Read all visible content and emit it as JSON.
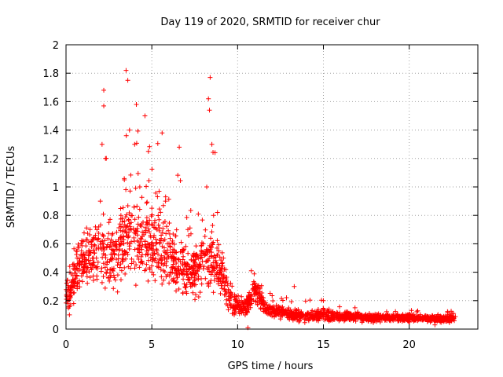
{
  "chart_data": {
    "type": "scatter",
    "title": "Day 119 of 2020, SRMTID for receiver chur",
    "xlabel": "GPS time / hours",
    "ylabel": "SRMTID / TECUs",
    "xlim": [
      0,
      24
    ],
    "ylim": [
      0,
      2
    ],
    "xticks": [
      0,
      5,
      10,
      15,
      20
    ],
    "yticks": [
      0,
      0.2,
      0.4,
      0.6,
      0.8,
      1,
      1.2,
      1.4,
      1.6,
      1.8,
      2
    ],
    "xtick_labels": [
      "0",
      "5",
      "10",
      "15",
      "20"
    ],
    "ytick_labels": [
      "0",
      "0.2",
      "0.4",
      "0.6",
      "0.8",
      "1",
      "1.2",
      "1.4",
      "1.6",
      "1.8",
      "2"
    ],
    "grid": true,
    "marker": "plus",
    "color": "#ff0000",
    "approx_point_count": 2200,
    "series": [
      {
        "name": "SRMTID",
        "points": [
          [
            0.1,
            0.18
          ],
          [
            0.2,
            0.1
          ],
          [
            0.3,
            0.3
          ],
          [
            0.5,
            0.42
          ],
          [
            0.6,
            0.55
          ],
          [
            0.8,
            0.48
          ],
          [
            1.0,
            0.62
          ],
          [
            1.2,
            0.4
          ],
          [
            1.4,
            0.7
          ],
          [
            1.6,
            0.5
          ],
          [
            1.8,
            0.35
          ],
          [
            2.0,
            0.9
          ],
          [
            2.1,
            1.3
          ],
          [
            2.2,
            1.68
          ],
          [
            2.2,
            1.57
          ],
          [
            2.3,
            1.2
          ],
          [
            2.5,
            0.75
          ],
          [
            2.8,
            0.55
          ],
          [
            3.0,
            0.45
          ],
          [
            3.2,
            0.8
          ],
          [
            3.4,
            1.05
          ],
          [
            3.5,
            1.82
          ],
          [
            3.6,
            1.75
          ],
          [
            3.7,
            1.4
          ],
          [
            4.0,
            1.3
          ],
          [
            4.1,
            1.58
          ],
          [
            4.3,
            1.0
          ],
          [
            4.6,
            1.5
          ],
          [
            4.8,
            1.25
          ],
          [
            5.0,
            0.85
          ],
          [
            5.3,
            0.7
          ],
          [
            5.6,
            1.38
          ],
          [
            5.8,
            0.9
          ],
          [
            6.0,
            0.6
          ],
          [
            6.3,
            0.5
          ],
          [
            6.6,
            1.28
          ],
          [
            6.8,
            0.45
          ],
          [
            7.1,
            0.7
          ],
          [
            7.4,
            0.4
          ],
          [
            7.7,
            0.35
          ],
          [
            8.0,
            0.6
          ],
          [
            8.2,
            1.0
          ],
          [
            8.3,
            1.62
          ],
          [
            8.4,
            1.77
          ],
          [
            8.5,
            1.3
          ],
          [
            8.6,
            0.8
          ],
          [
            8.9,
            0.55
          ],
          [
            9.2,
            0.38
          ],
          [
            9.5,
            0.2
          ],
          [
            9.8,
            0.1
          ],
          [
            10.0,
            0.15
          ],
          [
            10.6,
            0.01
          ],
          [
            10.8,
            0.41
          ],
          [
            11.0,
            0.3
          ],
          [
            11.5,
            0.22
          ],
          [
            12.0,
            0.15
          ],
          [
            12.5,
            0.13
          ],
          [
            13.0,
            0.1
          ],
          [
            13.3,
            0.3
          ],
          [
            13.6,
            0.06
          ],
          [
            14.0,
            0.1
          ],
          [
            14.5,
            0.08
          ],
          [
            15.0,
            0.2
          ],
          [
            15.5,
            0.12
          ],
          [
            16.0,
            0.08
          ],
          [
            16.5,
            0.07
          ],
          [
            17.0,
            0.12
          ],
          [
            17.5,
            0.09
          ],
          [
            18.0,
            0.06
          ],
          [
            18.5,
            0.1
          ],
          [
            19.0,
            0.08
          ],
          [
            19.5,
            0.07
          ],
          [
            20.0,
            0.1
          ],
          [
            20.5,
            0.06
          ],
          [
            21.0,
            0.08
          ],
          [
            21.5,
            0.03
          ],
          [
            22.0,
            0.09
          ],
          [
            22.5,
            0.11
          ]
        ]
      }
    ],
    "envelope": {
      "description": "mean / spread / peak of the dense point cloud (TECU) at hour marks",
      "hours": [
        0,
        0.5,
        1,
        1.5,
        2,
        2.5,
        3,
        3.5,
        4,
        4.5,
        5,
        5.5,
        6,
        6.5,
        7,
        7.5,
        8,
        8.5,
        9,
        9.5,
        10,
        10.5,
        11,
        11.5,
        12,
        13,
        14,
        15,
        16,
        17,
        18,
        19,
        20,
        21,
        22,
        22.7
      ],
      "mean": [
        0.22,
        0.38,
        0.48,
        0.5,
        0.55,
        0.5,
        0.55,
        0.68,
        0.65,
        0.62,
        0.6,
        0.58,
        0.5,
        0.46,
        0.42,
        0.4,
        0.45,
        0.5,
        0.42,
        0.22,
        0.17,
        0.17,
        0.28,
        0.17,
        0.13,
        0.1,
        0.09,
        0.1,
        0.09,
        0.085,
        0.08,
        0.08,
        0.08,
        0.075,
        0.07,
        0.08
      ],
      "spread": [
        0.1,
        0.12,
        0.15,
        0.16,
        0.2,
        0.18,
        0.22,
        0.25,
        0.25,
        0.22,
        0.22,
        0.2,
        0.18,
        0.16,
        0.15,
        0.14,
        0.16,
        0.18,
        0.14,
        0.08,
        0.06,
        0.06,
        0.07,
        0.05,
        0.04,
        0.03,
        0.03,
        0.035,
        0.03,
        0.025,
        0.025,
        0.02,
        0.025,
        0.02,
        0.02,
        0.025
      ],
      "peak": [
        0.35,
        0.6,
        0.72,
        0.78,
        1.68,
        1.0,
        1.0,
        1.82,
        1.6,
        1.5,
        1.3,
        1.38,
        1.1,
        1.28,
        0.9,
        0.8,
        1.0,
        1.77,
        0.6,
        0.35,
        0.25,
        0.2,
        0.41,
        0.3,
        0.25,
        0.3,
        0.2,
        0.22,
        0.16,
        0.15,
        0.14,
        0.13,
        0.14,
        0.12,
        0.13,
        0.15
      ]
    }
  }
}
